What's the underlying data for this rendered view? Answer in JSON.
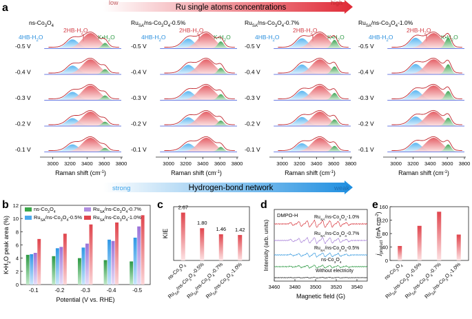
{
  "panel_a": {
    "letter": "a",
    "gradient_title": "Ru single atoms concentrations",
    "gradient_low": "low",
    "gradient_high": "high",
    "bottom_gradient_title": "Hydrogen-bond network",
    "bottom_low": "strong",
    "bottom_high": "weak",
    "samples": [
      {
        "name_main": "ns-Co",
        "name_sub": "3",
        "name_o": "O",
        "name_sub2": "4",
        "prefix": "",
        "suffix": ""
      },
      {
        "name_main": "Ru",
        "name_sub": "SA",
        "mid": "/ns-Co",
        "sub2": "3",
        "o": "O",
        "sub3": "4",
        "tail": "-0.5%"
      },
      {
        "name_main": "Ru",
        "name_sub": "SA",
        "mid": "/ns-Co",
        "sub2": "3",
        "o": "O",
        "sub3": "4",
        "tail": "-0.7%"
      },
      {
        "name_main": "Ru",
        "name_sub": "SA",
        "mid": "/ns-Co",
        "sub2": "3",
        "o": "O",
        "sub3": "4",
        "tail": "-1.0%"
      }
    ],
    "potentials": [
      "-0.5 V",
      "-0.4 V",
      "-0.3 V",
      "-0.2 V",
      "-0.1 V"
    ],
    "peak_labels": {
      "fourHB": "4HB-H",
      "twoHB": "2HB-H",
      "K": "K•H",
      "sub": "2",
      "o": "O"
    },
    "x_ticks": [
      "3000",
      "3200",
      "3400",
      "3600",
      "3800"
    ],
    "x_label": "Raman shift (cm",
    "x_label_sup": "-1",
    "x_label_close": ")",
    "colors": {
      "blue": "#5bb8f0",
      "red": "#e0454d",
      "green": "#3aa64a",
      "fit": "#c0262d",
      "baseline": "#3a4fd8"
    }
  },
  "panel_b": {
    "letter": "b",
    "ylabel": "K•H",
    "ylabel_sub": "2",
    "ylabel_tail": "O peak area (%)",
    "xlabel": "Potential (V vs. RHE)",
    "chart_data": {
      "type": "bar",
      "categories": [
        "-0.1",
        "-0.2",
        "-0.3",
        "-0.4",
        "-0.5"
      ],
      "ylim": [
        0,
        12
      ],
      "yticks": [
        "0",
        "2",
        "4",
        "6",
        "8",
        "10",
        "12"
      ],
      "series": [
        {
          "name": "ns-Co3O4",
          "values": [
            4.5,
            4.3,
            4.0,
            3.7,
            3.5
          ],
          "color": "#3aa64a"
        },
        {
          "name": "RuSA/ns-Co3O4-0.5%",
          "values": [
            4.6,
            5.5,
            5.6,
            6.8,
            7.1
          ],
          "color": "#4aa8ec"
        },
        {
          "name": "RuSA/ns-Co3O4-0.7%",
          "values": [
            4.8,
            5.7,
            6.2,
            6.6,
            8.8
          ],
          "color": "#b08ee0"
        },
        {
          "name": "RuSA/ns-Co3O4-1.0%",
          "values": [
            6.9,
            7.7,
            9.1,
            9.4,
            10.5
          ],
          "color": "#e0454d"
        }
      ]
    },
    "legend": [
      {
        "main": "ns-Co",
        "sub": "3",
        "o": "O",
        "sub2": "4",
        "pre": "",
        "tail": ""
      },
      {
        "pre": "Ru",
        "presub": "SA",
        "main": "/ns-Co",
        "sub": "3",
        "o": "O",
        "sub2": "4",
        "tail": "-0.5%"
      },
      {
        "pre": "Ru",
        "presub": "SA",
        "main": "/ns-Co",
        "sub": "3",
        "o": "O",
        "sub2": "4",
        "tail": "-0.7%"
      },
      {
        "pre": "Ru",
        "presub": "SA",
        "main": "/ns-Co",
        "sub": "3",
        "o": "O",
        "sub2": "4",
        "tail": "-1.0%"
      }
    ]
  },
  "panel_c": {
    "letter": "c",
    "ylabel": "KIE",
    "chart_data": {
      "type": "bar",
      "categories": [
        "ns-Co3O4",
        "RuSA/ns-Co3O4-0.5%",
        "RuSA/ns-Co3O4-0.7%",
        "RuSA/ns-Co3O4-1.0%"
      ],
      "values": [
        2.67,
        1.8,
        1.46,
        1.42
      ],
      "labels": [
        "2.67",
        "1.80",
        "1.46",
        "1.42"
      ],
      "ylim": [
        0,
        3
      ]
    },
    "xticks": [
      {
        "pre": "",
        "presub": "",
        "main": "ns-Co",
        "sub": "3",
        "o": "O",
        "sub2": "4",
        "tail": ""
      },
      {
        "pre": "Ru",
        "presub": "SA",
        "main": "/ns-Co",
        "sub": "3",
        "o": "O",
        "sub2": "4",
        "tail": "-0.5%"
      },
      {
        "pre": "Ru",
        "presub": "SA",
        "main": "/ns-Co",
        "sub": "3",
        "o": "O",
        "sub2": "4",
        "tail": "-0.7%"
      },
      {
        "pre": "Ru",
        "presub": "SA",
        "main": "/ns-Co",
        "sub": "3",
        "o": "O",
        "sub2": "4",
        "tail": "-1.0%"
      }
    ]
  },
  "panel_d": {
    "letter": "d",
    "ylabel": "Intensity (arb. units)",
    "xlabel": "Magnetic field (G)",
    "title": "DMPO-H",
    "chart_data": {
      "type": "line",
      "xlim": [
        3460,
        3550
      ],
      "xticks": [
        "3460",
        "3480",
        "3500",
        "3520",
        "3540"
      ],
      "series": [
        {
          "name": "RuSA/ns-Co3O4-1.0%",
          "color": "#d8383f"
        },
        {
          "name": "RuSA/ns-Co3O4-0.7%",
          "color": "#a77fd8"
        },
        {
          "name": "RuSA/ns-Co3O4-0.5%",
          "color": "#3d9de0"
        },
        {
          "name": "ns-Co3O4",
          "color": "#2e9a44"
        },
        {
          "name": "Without electricity",
          "color": "#222222"
        }
      ]
    },
    "trace_labels": [
      {
        "pre": "Ru",
        "presub": "SA",
        "main": "/ns-Co",
        "sub": "3",
        "o": "O",
        "sub2": "4",
        "tail": "-1.0%"
      },
      {
        "pre": "Ru",
        "presub": "SA",
        "main": "/ns-Co",
        "sub": "3",
        "o": "O",
        "sub2": "4",
        "tail": "-0.7%"
      },
      {
        "pre": "Ru",
        "presub": "SA",
        "main": "/ns-Co",
        "sub": "3",
        "o": "O",
        "sub2": "4",
        "tail": "-0.5%"
      },
      {
        "pre": "",
        "presub": "",
        "main": "ns-Co",
        "sub": "3",
        "o": "O",
        "sub2": "4",
        "tail": ""
      },
      {
        "pre": "",
        "presub": "",
        "main": "Without electricity",
        "sub": "",
        "o": "",
        "sub2": "",
        "tail": ""
      }
    ]
  },
  "panel_e": {
    "letter": "e",
    "ylabel_main": "j",
    "ylabel_sub": "product",
    "ylabel_tail": " (mA cm",
    "ylabel_sup": "-2",
    "ylabel_close": ")",
    "chart_data": {
      "type": "bar",
      "categories": [
        "ns-Co3O4",
        "RuSA/ns-Co3O4-0.5%",
        "RuSA/ns-Co3O4-0.7%",
        "RuSA/ns-Co3O4-1.0%"
      ],
      "values": [
        43,
        103,
        145,
        77
      ],
      "ylim": [
        0,
        160
      ],
      "yticks": [
        "0",
        "40",
        "80",
        "120",
        "160"
      ]
    },
    "xticks": [
      {
        "pre": "",
        "presub": "",
        "main": "ns-Co",
        "sub": "3",
        "o": "O",
        "sub2": "4",
        "tail": ""
      },
      {
        "pre": "Ru",
        "presub": "SA",
        "main": "/ns-Co",
        "sub": "3",
        "o": "O",
        "sub2": "4",
        "tail": "-0.5%"
      },
      {
        "pre": "Ru",
        "presub": "SA",
        "main": "/ns-Co",
        "sub": "3",
        "o": "O",
        "sub2": "4",
        "tail": "-0.7%"
      },
      {
        "pre": "Ru",
        "presub": "SA",
        "main": "/ns-Co",
        "sub": "3",
        "o": "O",
        "sub2": "4",
        "tail": "-1.0%"
      }
    ]
  }
}
